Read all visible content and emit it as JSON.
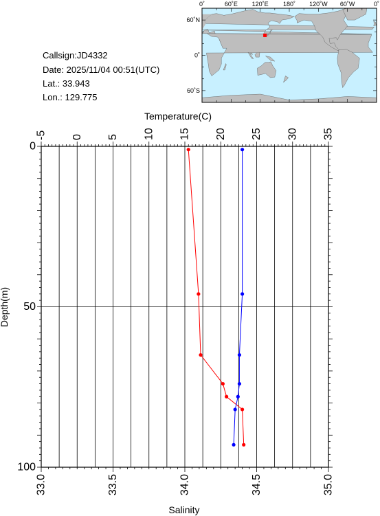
{
  "station": {
    "callsign": "Callsign:JD4332",
    "date": "Date:  2025/11/04 00:51(UTC)",
    "lat": "Lat.:   33.943",
    "lon": "Lon.:  129.775"
  },
  "map": {
    "lon_ticks": [
      "0˚",
      "60˚E",
      "120˚E",
      "180˚",
      "120˚W",
      "60˚W",
      "0˚"
    ],
    "lat_ticks": [
      "60˚N",
      "0˚",
      "60˚S"
    ],
    "ocean_color": "#c8f0ff",
    "land_color": "#bebebe",
    "marker_color": "#ff0000",
    "marker_lat": 33.943,
    "marker_lon": 129.775
  },
  "chart_data": {
    "type": "line",
    "title": "",
    "ylabel": "Depth(m)",
    "ylim": [
      0,
      100
    ],
    "y_ticks": [
      0,
      50,
      100
    ],
    "y_inverted": true,
    "top_axis": {
      "label": "Temperature(C)",
      "range": [
        -5,
        35
      ],
      "ticks": [
        -5,
        0,
        5,
        10,
        15,
        20,
        25,
        30,
        35
      ]
    },
    "bottom_axis": {
      "label": "Salinity",
      "range": [
        33.0,
        35.0
      ],
      "ticks": [
        "33.0",
        "33.5",
        "34.0",
        "34.5",
        "35.0"
      ]
    },
    "grid": true,
    "series": [
      {
        "axis": "top",
        "color": "#ff0000",
        "points": [
          {
            "x": 15.5,
            "y": 1
          },
          {
            "x": 16.9,
            "y": 46
          },
          {
            "x": 17.2,
            "y": 65
          },
          {
            "x": 20.3,
            "y": 74
          },
          {
            "x": 20.8,
            "y": 78
          },
          {
            "x": 23.0,
            "y": 82
          },
          {
            "x": 23.2,
            "y": 93
          }
        ]
      },
      {
        "axis": "bottom",
        "color": "#0000ff",
        "points": [
          {
            "x": 34.4,
            "y": 1
          },
          {
            "x": 34.4,
            "y": 46
          },
          {
            "x": 34.38,
            "y": 65
          },
          {
            "x": 34.38,
            "y": 74
          },
          {
            "x": 34.37,
            "y": 78
          },
          {
            "x": 34.35,
            "y": 82
          },
          {
            "x": 34.34,
            "y": 93
          }
        ]
      }
    ]
  }
}
